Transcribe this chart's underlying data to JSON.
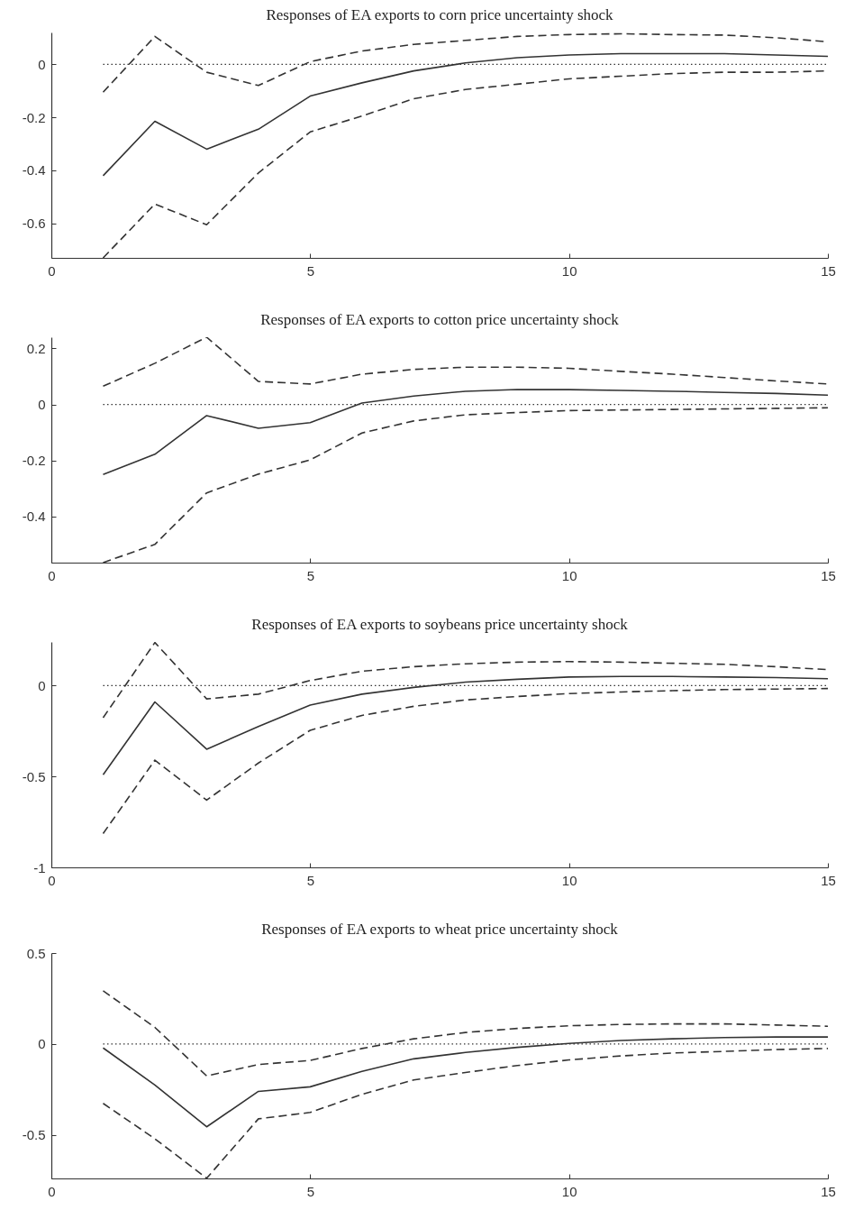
{
  "chart_data": [
    {
      "type": "line",
      "title": "Responses of EA exports to corn price uncertainty shock",
      "x": [
        1,
        2,
        3,
        4,
        5,
        6,
        7,
        8,
        9,
        10,
        11,
        12,
        13,
        14,
        15
      ],
      "xlim": [
        0,
        15
      ],
      "xticks": [
        0,
        5,
        10,
        15
      ],
      "ylim": [
        -0.73,
        0.12
      ],
      "yticks": [
        -0.6,
        -0.4,
        -0.2,
        0
      ],
      "grid": false,
      "series": [
        {
          "color": "#333333",
          "line_style": "solid",
          "values": [
            -0.42,
            -0.215,
            -0.32,
            -0.245,
            -0.12,
            -0.07,
            -0.025,
            0.005,
            0.025,
            0.035,
            0.04,
            0.04,
            0.04,
            0.035,
            0.03
          ]
        },
        {
          "color": "#333333",
          "line_style": "dashed",
          "values": [
            -0.105,
            0.105,
            -0.03,
            -0.08,
            0.01,
            0.05,
            0.075,
            0.09,
            0.105,
            0.112,
            0.115,
            0.112,
            0.11,
            0.1,
            0.085
          ]
        },
        {
          "color": "#333333",
          "line_style": "dashed",
          "values": [
            -0.73,
            -0.527,
            -0.605,
            -0.41,
            -0.255,
            -0.195,
            -0.13,
            -0.095,
            -0.075,
            -0.055,
            -0.045,
            -0.035,
            -0.03,
            -0.03,
            -0.025
          ]
        }
      ],
      "ref_lines": [
        {
          "axis": "y",
          "value": 0,
          "color": "#333333",
          "line_style": "dotted"
        }
      ]
    },
    {
      "type": "line",
      "title": "Responses of EA exports to cotton price uncertainty shock",
      "x": [
        1,
        2,
        3,
        4,
        5,
        6,
        7,
        8,
        9,
        10,
        11,
        12,
        13,
        14,
        15
      ],
      "xlim": [
        0,
        15
      ],
      "xticks": [
        0,
        5,
        10,
        15
      ],
      "ylim": [
        -0.565,
        0.24
      ],
      "yticks": [
        -0.4,
        -0.2,
        0,
        0.2
      ],
      "grid": false,
      "series": [
        {
          "color": "#333333",
          "line_style": "solid",
          "values": [
            -0.25,
            -0.178,
            -0.04,
            -0.085,
            -0.065,
            0.005,
            0.03,
            0.047,
            0.053,
            0.053,
            0.05,
            0.047,
            0.043,
            0.039,
            0.033
          ]
        },
        {
          "color": "#333333",
          "line_style": "dashed",
          "values": [
            0.065,
            0.147,
            0.24,
            0.082,
            0.073,
            0.108,
            0.125,
            0.133,
            0.133,
            0.129,
            0.118,
            0.108,
            0.096,
            0.084,
            0.073
          ]
        },
        {
          "color": "#333333",
          "line_style": "dashed",
          "values": [
            -0.565,
            -0.5,
            -0.316,
            -0.249,
            -0.198,
            -0.102,
            -0.059,
            -0.037,
            -0.029,
            -0.022,
            -0.02,
            -0.018,
            -0.016,
            -0.014,
            -0.012
          ]
        }
      ],
      "ref_lines": [
        {
          "axis": "y",
          "value": 0,
          "color": "#333333",
          "line_style": "dotted"
        }
      ]
    },
    {
      "type": "line",
      "title": "Responses of EA exports to soybeans price uncertainty shock",
      "x": [
        1,
        2,
        3,
        4,
        5,
        6,
        7,
        8,
        9,
        10,
        11,
        12,
        13,
        14,
        15
      ],
      "xlim": [
        0,
        15
      ],
      "xticks": [
        0,
        5,
        10,
        15
      ],
      "ylim": [
        -1,
        0.24
      ],
      "yticks": [
        -1,
        -0.5,
        0
      ],
      "grid": false,
      "series": [
        {
          "color": "#333333",
          "line_style": "solid",
          "values": [
            -0.49,
            -0.09,
            -0.35,
            -0.225,
            -0.107,
            -0.047,
            -0.01,
            0.019,
            0.035,
            0.047,
            0.05,
            0.05,
            0.047,
            0.044,
            0.038
          ]
        },
        {
          "color": "#333333",
          "line_style": "dashed",
          "values": [
            -0.177,
            0.237,
            -0.073,
            -0.047,
            0.028,
            0.079,
            0.104,
            0.12,
            0.129,
            0.132,
            0.129,
            0.123,
            0.117,
            0.104,
            0.088
          ]
        },
        {
          "color": "#333333",
          "line_style": "dashed",
          "values": [
            -0.814,
            -0.41,
            -0.63,
            -0.426,
            -0.246,
            -0.164,
            -0.114,
            -0.079,
            -0.06,
            -0.044,
            -0.035,
            -0.028,
            -0.022,
            -0.019,
            -0.016
          ]
        }
      ],
      "ref_lines": [
        {
          "axis": "y",
          "value": 0,
          "color": "#333333",
          "line_style": "dotted"
        }
      ]
    },
    {
      "type": "line",
      "title": "Responses of EA exports to wheat price uncertainty shock",
      "x": [
        1,
        2,
        3,
        4,
        5,
        6,
        7,
        8,
        9,
        10,
        11,
        12,
        13,
        14,
        15
      ],
      "xlim": [
        0,
        15
      ],
      "xticks": [
        0,
        5,
        10,
        15
      ],
      "ylim": [
        -0.74,
        0.5
      ],
      "yticks": [
        -0.5,
        0,
        0.5
      ],
      "grid": false,
      "series": [
        {
          "color": "#333333",
          "line_style": "solid",
          "values": [
            -0.022,
            -0.226,
            -0.456,
            -0.261,
            -0.236,
            -0.151,
            -0.082,
            -0.047,
            -0.019,
            0.003,
            0.019,
            0.028,
            0.035,
            0.038,
            0.038
          ]
        },
        {
          "color": "#333333",
          "line_style": "dashed",
          "values": [
            0.292,
            0.091,
            -0.176,
            -0.113,
            -0.091,
            -0.025,
            0.028,
            0.063,
            0.085,
            0.1,
            0.107,
            0.11,
            0.11,
            0.104,
            0.097
          ]
        },
        {
          "color": "#333333",
          "line_style": "dashed",
          "values": [
            -0.327,
            -0.522,
            -0.739,
            -0.412,
            -0.377,
            -0.277,
            -0.198,
            -0.157,
            -0.119,
            -0.088,
            -0.066,
            -0.05,
            -0.041,
            -0.031,
            -0.025
          ]
        }
      ],
      "ref_lines": [
        {
          "axis": "y",
          "value": 0,
          "color": "#333333",
          "line_style": "dotted"
        }
      ]
    }
  ]
}
